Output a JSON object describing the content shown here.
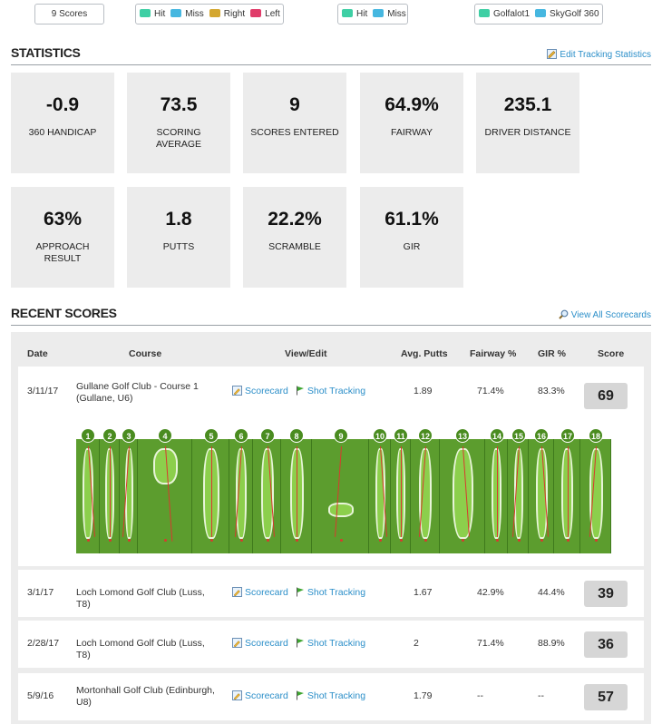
{
  "filters": {
    "scores_label": "9 Scores",
    "legend1": [
      {
        "label": "Hit",
        "color": "#3ecfa4"
      },
      {
        "label": "Miss",
        "color": "#46b7e0"
      },
      {
        "label": "Right",
        "color": "#d4a730"
      },
      {
        "label": "Left",
        "color": "#e03c6a"
      }
    ],
    "legend2": [
      {
        "label": "Hit",
        "color": "#3ecfa4"
      },
      {
        "label": "Miss",
        "color": "#46b7e0"
      }
    ],
    "legend3": [
      {
        "label": "Golfalot1",
        "color": "#3ecfa4"
      },
      {
        "label": "SkyGolf 360",
        "color": "#46b7e0"
      }
    ]
  },
  "statistics": {
    "title": "STATISTICS",
    "edit_link": "Edit Tracking Statistics",
    "tiles": [
      {
        "value": "-0.9",
        "label": "360 HANDICAP"
      },
      {
        "value": "73.5",
        "label": "SCORING AVERAGE"
      },
      {
        "value": "9",
        "label": "SCORES ENTERED"
      },
      {
        "value": "64.9%",
        "label": "FAIRWAY"
      },
      {
        "value": "235.1",
        "label": "DRIVER DISTANCE"
      },
      {
        "value": "63%",
        "label": "APPROACH RESULT"
      },
      {
        "value": "1.8",
        "label": "PUTTS"
      },
      {
        "value": "22.2%",
        "label": "SCRAMBLE"
      },
      {
        "value": "61.1%",
        "label": "GIR"
      }
    ]
  },
  "recent": {
    "title": "RECENT SCORES",
    "view_all": "View All Scorecards",
    "columns": {
      "date": "Date",
      "course": "Course",
      "view": "View/Edit",
      "putts": "Avg. Putts",
      "fairway": "Fairway %",
      "gir": "GIR %",
      "score": "Score"
    },
    "scorecard_label": "Scorecard",
    "tracking_label": "Shot Tracking",
    "rows": [
      {
        "date": "3/11/17",
        "course": "Gullane Golf Club - Course 1 (Gullane, U6)",
        "putts": "1.89",
        "fairway": "71.4%",
        "gir": "83.3%",
        "score": "69"
      },
      {
        "date": "3/1/17",
        "course": "Loch Lomond Golf Club (Luss, T8)",
        "putts": "1.67",
        "fairway": "42.9%",
        "gir": "44.4%",
        "score": "39"
      },
      {
        "date": "2/28/17",
        "course": "Loch Lomond Golf Club (Luss, T8)",
        "putts": "2",
        "fairway": "71.4%",
        "gir": "88.9%",
        "score": "36"
      },
      {
        "date": "5/9/16",
        "course": "Mortonhall Golf Club (Edinburgh, U8)",
        "putts": "1.79",
        "fairway": "--",
        "gir": "--",
        "score": "57"
      }
    ],
    "holes": [
      "1",
      "2",
      "3",
      "4",
      "5",
      "6",
      "7",
      "8",
      "9",
      "10",
      "11",
      "12",
      "13",
      "14",
      "15",
      "16",
      "17",
      "18"
    ]
  }
}
